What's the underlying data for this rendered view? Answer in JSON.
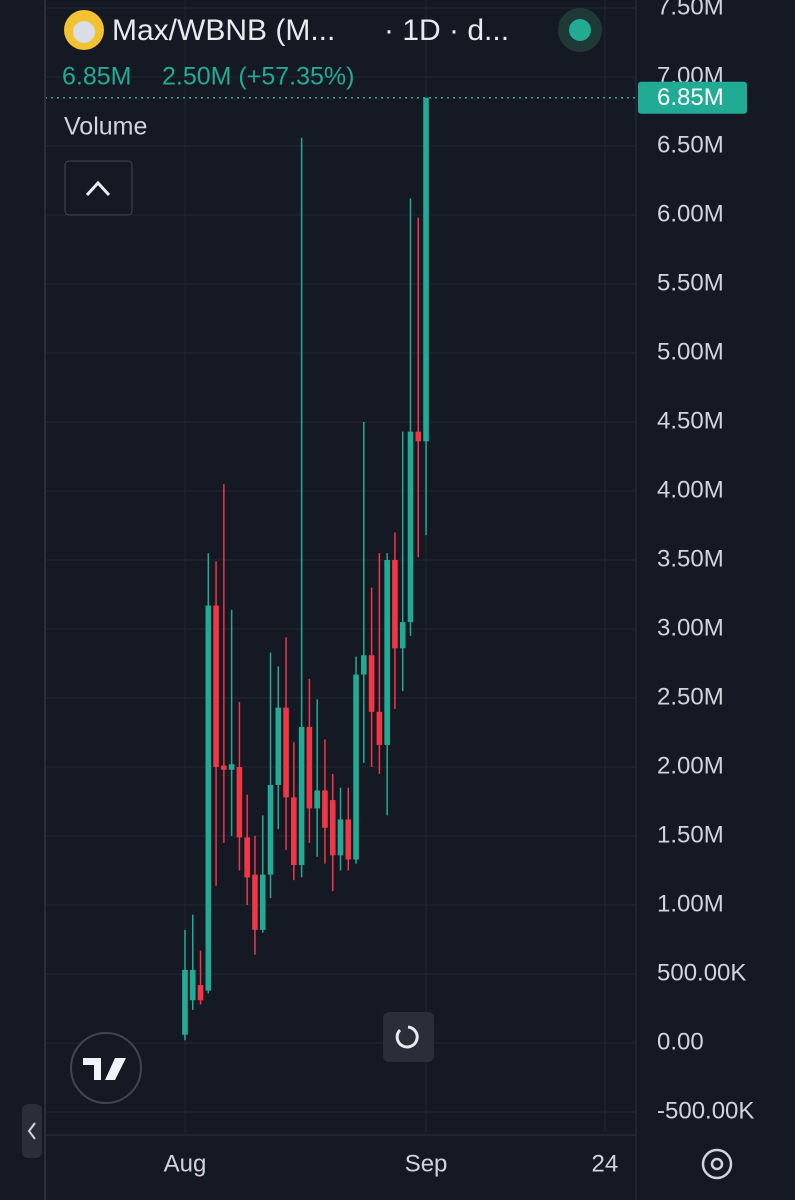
{
  "header": {
    "symbol": "Max/WBNB (M...",
    "interval": "· 1D · d...",
    "price": "6.85M",
    "change": "2.50M (+57.35%)",
    "indicator": "Volume"
  },
  "chart_data": {
    "type": "candlestick",
    "x": [
      0,
      1,
      2,
      3,
      4,
      5,
      6,
      7,
      8,
      9,
      10,
      11,
      12,
      13,
      14,
      15,
      16,
      17,
      18,
      19,
      20,
      21,
      22,
      23,
      24,
      25,
      26,
      27,
      28,
      29,
      30,
      31
    ],
    "open": [
      60000,
      310000,
      420000,
      380000,
      3170000,
      2010000,
      1980000,
      2000000,
      1490000,
      1220000,
      820000,
      1220000,
      1870000,
      2430000,
      1780000,
      1290000,
      2290000,
      1700000,
      1830000,
      1760000,
      1360000,
      1620000,
      1330000,
      2670000,
      2810000,
      2400000,
      2160000,
      3500000,
      2860000,
      3050000,
      4430000,
      4360000
    ],
    "high": [
      820000,
      930000,
      670000,
      3550000,
      3490000,
      4050000,
      3140000,
      2470000,
      1800000,
      1500000,
      1650000,
      2830000,
      2730000,
      2940000,
      2180000,
      6560000,
      2640000,
      2490000,
      2200000,
      1950000,
      1850000,
      1850000,
      2800000,
      4500000,
      3300000,
      3550000,
      3550000,
      3700000,
      4430000,
      6120000,
      5980000,
      6850000
    ],
    "low": [
      20000,
      240000,
      280000,
      360000,
      1140000,
      1450000,
      1500000,
      1250000,
      1000000,
      640000,
      800000,
      1050000,
      1550000,
      1400000,
      1180000,
      1200000,
      1450000,
      1350000,
      1300000,
      1100000,
      1250000,
      1250000,
      1300000,
      2030000,
      2000000,
      1950000,
      1650000,
      2420000,
      2550000,
      2950000,
      3520000,
      3680000
    ],
    "close": [
      530000,
      530000,
      310000,
      3170000,
      2000000,
      1980000,
      2020000,
      1490000,
      1200000,
      820000,
      1220000,
      1870000,
      2430000,
      1780000,
      1290000,
      2290000,
      1700000,
      1830000,
      1560000,
      1360000,
      1620000,
      1330000,
      2670000,
      2810000,
      2400000,
      2160000,
      3500000,
      2860000,
      3050000,
      4430000,
      4360000,
      6850000
    ],
    "up_color": "#22ab94",
    "down_color": "#f23645",
    "xlim": [
      -18,
      58
    ],
    "xticks": [
      {
        "value": 0,
        "label": "Aug"
      },
      {
        "value": 31,
        "label": "Sep"
      },
      {
        "value": 54,
        "label": "24"
      }
    ],
    "ylim": [
      -652000,
      7558000
    ],
    "yticks": [
      {
        "value": -500000,
        "label": "-500.00K"
      },
      {
        "value": 0,
        "label": "0.00"
      },
      {
        "value": 500000,
        "label": "500.00K"
      },
      {
        "value": 1000000,
        "label": "1.00M"
      },
      {
        "value": 1500000,
        "label": "1.50M"
      },
      {
        "value": 2000000,
        "label": "2.00M"
      },
      {
        "value": 2500000,
        "label": "2.50M"
      },
      {
        "value": 3000000,
        "label": "3.00M"
      },
      {
        "value": 3500000,
        "label": "3.50M"
      },
      {
        "value": 4000000,
        "label": "4.00M"
      },
      {
        "value": 4500000,
        "label": "4.50M"
      },
      {
        "value": 5000000,
        "label": "5.00M"
      },
      {
        "value": 5500000,
        "label": "5.50M"
      },
      {
        "value": 6000000,
        "label": "6.00M"
      },
      {
        "value": 6500000,
        "label": "6.50M"
      },
      {
        "value": 7000000,
        "label": "7.00M"
      },
      {
        "value": 7500000,
        "label": "7.50M"
      }
    ],
    "last_price": {
      "value": 6850000,
      "label": "6.85M"
    },
    "grid": true
  }
}
